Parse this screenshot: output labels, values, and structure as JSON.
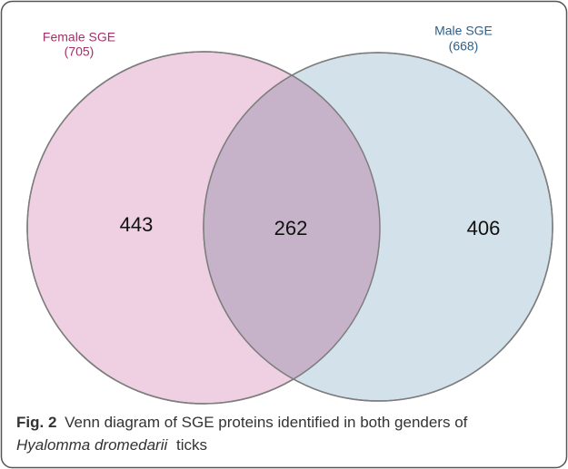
{
  "sets": [
    {
      "label": "Female SGE",
      "total": "(705)",
      "only": 443
    },
    {
      "label": "Male SGE",
      "total": "(668)",
      "only": 406
    }
  ],
  "overlap": 262,
  "caption": {
    "label": "Fig. 2",
    "text": "Venn diagram of SGE proteins identified in both genders of",
    "italic": "Hyalomma dromedarii",
    "tail": "ticks"
  }
}
